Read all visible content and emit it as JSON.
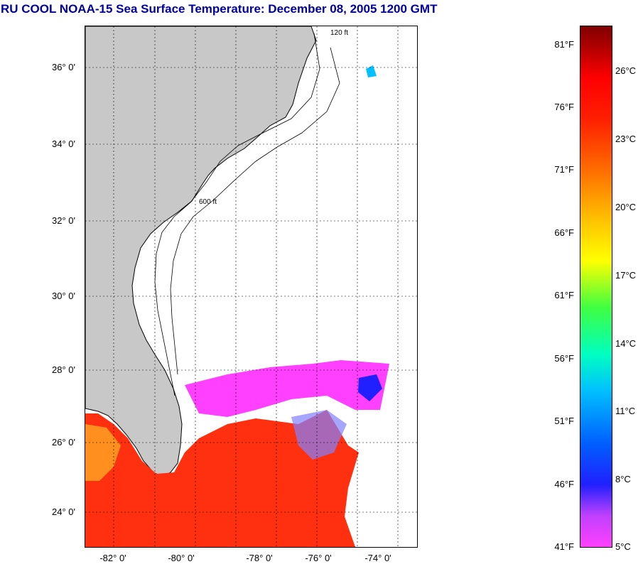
{
  "title": "RU COOL  NOAA-15  Sea Surface Temperature:  December 08, 2005 1200 GMT",
  "lat_labels": [
    "36° 0'",
    "34° 0'",
    "32° 0'",
    "30° 0'",
    "28° 0'",
    "26° 0'",
    "24° 0'"
  ],
  "lon_labels": [
    "-82° 0'",
    "-80° 0'",
    "-78° 0'",
    "-76° 0'",
    "-74° 0'"
  ],
  "contour_labels": [
    "120 ft",
    "600 ft"
  ],
  "colorbar": {
    "fahrenheit": [
      "81°F",
      "76°F",
      "71°F",
      "66°F",
      "61°F",
      "56°F",
      "51°F",
      "46°F",
      "41°F"
    ],
    "celsius": [
      "26°C",
      "23°C",
      "20°C",
      "17°C",
      "14°C",
      "11°C",
      "8°C",
      "5°C"
    ]
  },
  "colors": {
    "title": "#0000a0",
    "land": "#c8c8c8",
    "sst_warm": "#ff3010",
    "sst_cold": "#ff40ff"
  }
}
